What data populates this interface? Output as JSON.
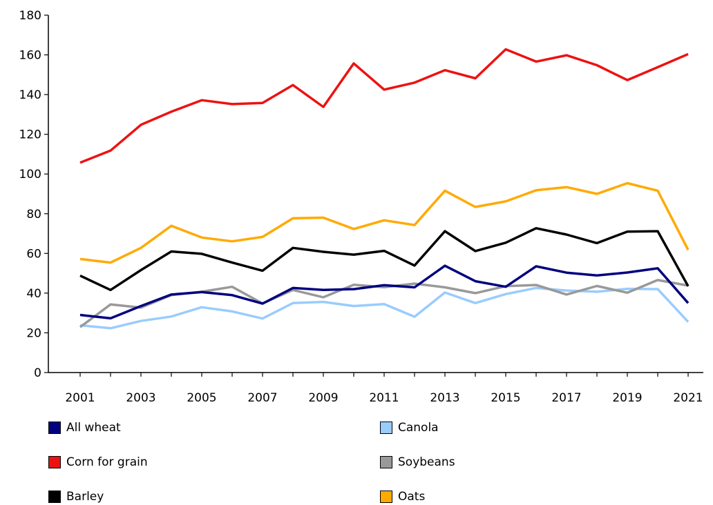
{
  "chart_data": {
    "type": "line",
    "title": "",
    "xlabel": "",
    "ylabel": "",
    "ylim": [
      0,
      180
    ],
    "yticks": [
      0,
      20,
      40,
      60,
      80,
      100,
      120,
      140,
      160,
      180
    ],
    "x": [
      2001,
      2002,
      2003,
      2004,
      2005,
      2006,
      2007,
      2008,
      2009,
      2010,
      2011,
      2012,
      2013,
      2014,
      2015,
      2016,
      2017,
      2018,
      2019,
      2020,
      2021
    ],
    "xticks": [
      2001,
      2003,
      2005,
      2007,
      2009,
      2011,
      2013,
      2015,
      2017,
      2019,
      2021
    ],
    "grid": false,
    "legend_position": "bottom",
    "series": [
      {
        "name": "All wheat",
        "color": "#000080",
        "values": [
          29,
          27.3,
          33.5,
          39.3,
          40.5,
          39,
          34.7,
          42.6,
          41.6,
          42,
          44,
          42.9,
          53.8,
          46,
          43.2,
          53.5,
          50.3,
          48.9,
          50.4,
          52.5,
          35
        ]
      },
      {
        "name": "Canola",
        "color": "#99ccff",
        "values": [
          23.8,
          22.3,
          26,
          28.2,
          32.9,
          30.8,
          27.2,
          35,
          35.6,
          33.5,
          34.5,
          28.1,
          40.3,
          35,
          39.5,
          42.6,
          41.3,
          40.7,
          42.2,
          42,
          25.5
        ]
      },
      {
        "name": "Corn for grain",
        "color": "#ee1111",
        "values": [
          105.7,
          111.8,
          124.8,
          131.4,
          137.2,
          135.2,
          135.8,
          144.8,
          133.8,
          155.7,
          142.5,
          146,
          152.3,
          148.2,
          162.8,
          156.6,
          159.8,
          154.8,
          147.3,
          153.8,
          160.4
        ]
      },
      {
        "name": "Soybeans",
        "color": "#999999",
        "values": [
          22.9,
          34.3,
          32.7,
          39,
          40.7,
          43.2,
          34.8,
          41.6,
          37.9,
          44.2,
          43,
          44.8,
          42.9,
          40,
          43.5,
          44.1,
          39.3,
          43.6,
          40.2,
          46.6,
          43.8
        ]
      },
      {
        "name": "Barley",
        "color": "#000000",
        "values": [
          48.8,
          41.6,
          51.6,
          61,
          59.8,
          55.4,
          51.3,
          62.8,
          60.8,
          59.4,
          61.3,
          53.9,
          71.2,
          61.2,
          65.4,
          72.7,
          69.5,
          65.2,
          71,
          71.2,
          43.5
        ]
      },
      {
        "name": "Oats",
        "color": "#ffaa00",
        "values": [
          57.2,
          55.4,
          62.8,
          73.9,
          68,
          66.1,
          68.3,
          77.7,
          78,
          72.3,
          76.7,
          74.3,
          91.6,
          83.4,
          86.2,
          91.8,
          93.4,
          90,
          95.4,
          91.6,
          61.8
        ]
      }
    ]
  }
}
